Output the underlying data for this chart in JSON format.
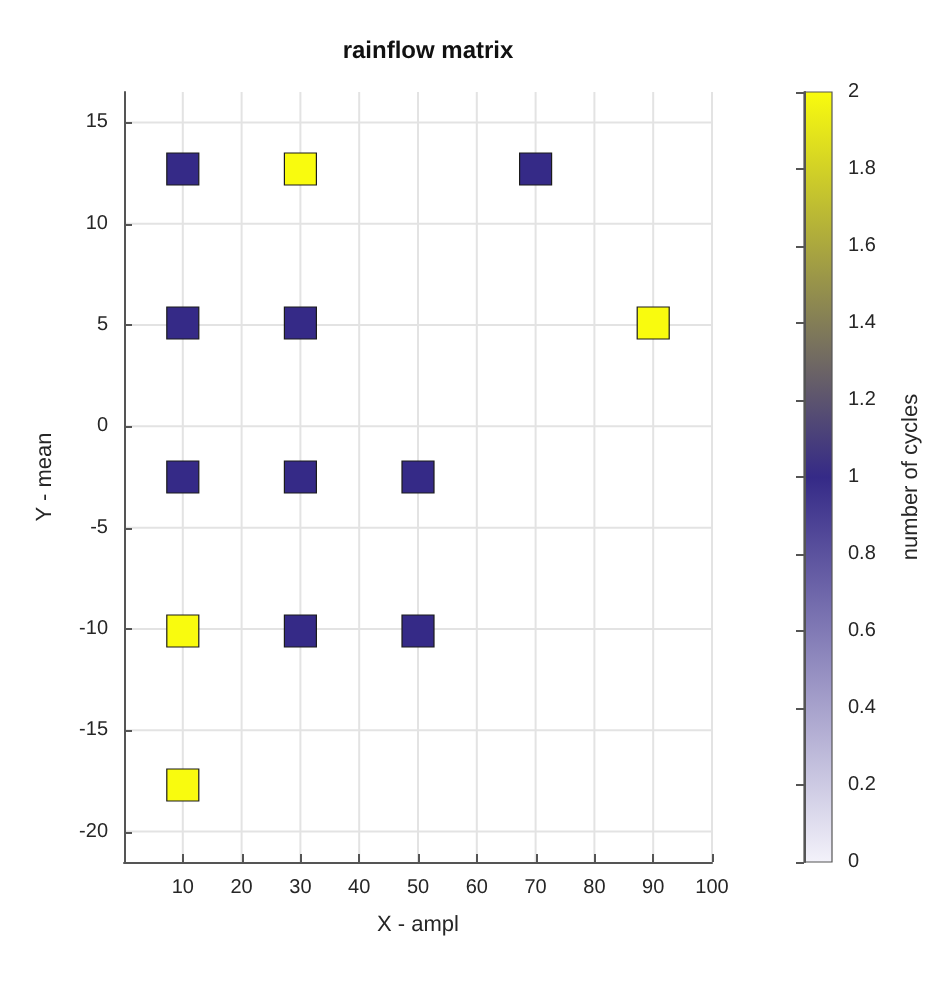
{
  "chart_data": {
    "type": "scatter",
    "title": "rainflow matrix",
    "xlabel": "X - ampl",
    "ylabel": "Y - mean",
    "clabel": "number of cycles",
    "x": [
      10,
      10,
      30,
      50,
      10,
      30,
      50,
      10,
      30,
      90,
      10,
      30,
      70
    ],
    "values": [
      -17.7,
      -10.1,
      -10.1,
      -10.1,
      -2.5,
      -2.5,
      -2.5,
      5.1,
      5.1,
      5.1,
      12.7,
      12.7,
      12.7
    ],
    "cvalues": [
      2,
      2,
      1,
      1,
      1,
      1,
      1,
      1,
      1,
      2,
      1,
      2,
      1
    ],
    "marker": "square",
    "grid": true,
    "xlim": [
      0,
      100
    ],
    "xticks": [
      10,
      20,
      30,
      40,
      50,
      60,
      70,
      80,
      90,
      100
    ],
    "ylim": [
      -21.5,
      16.5
    ],
    "yticks": [
      -20,
      -15,
      -10,
      -5,
      0,
      5,
      10,
      15
    ],
    "clim": [
      0,
      2
    ],
    "cticks": [
      0,
      0.2,
      0.4,
      0.6,
      0.8,
      1,
      1.2,
      1.4,
      1.6,
      1.8,
      2
    ]
  }
}
